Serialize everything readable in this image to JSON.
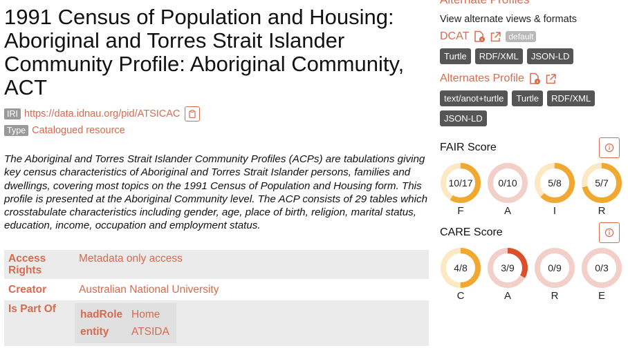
{
  "header": {
    "title": "1991 Census of Population and Housing: Aboriginal and Torres Strait Islander Community Profile: Aboriginal Community, ACT",
    "iri_label": "IRI",
    "iri": "https://data.idnau.org/pid/ATSICAC",
    "type_label": "Type",
    "type_value": "Catalogued resource"
  },
  "description": "The Aboriginal and Torres Strait Islander Community Profiles (ACPs) are tabulations giving key census characteristics of Aboriginal and Torres Strait Islander persons, families and dwellings, covering most topics on the 1991 Census of Population and Housing form. This profile is presented at the Aboriginal Community level. The ACP consists of 29 tables which crosstabulate characteristics including gender, age, place of birth, religion, marital status, education, income, occupation and employment status.",
  "properties": {
    "access_key": "Access Rights",
    "access_value": "Metadata only access",
    "creator_key": "Creator",
    "creator_value": "Australian National University",
    "partof_key": "Is Part Of",
    "partof_nested": [
      {
        "k": "hadRole",
        "v": "Home"
      },
      {
        "k": "entity",
        "v": "ATSIDA"
      }
    ]
  },
  "alternates": {
    "title": "Alternate Profiles",
    "subtitle": "View alternate views & formats",
    "dcat_label": "DCAT",
    "dcat_default": "default",
    "dcat_formats": [
      "Turtle",
      "RDF/XML",
      "JSON-LD"
    ],
    "alt_label": "Alternates Profile",
    "alt_formats": [
      "text/anot+turtle",
      "Turtle",
      "RDF/XML",
      "JSON-LD"
    ]
  },
  "fair": {
    "title": "FAIR Score",
    "scores": [
      {
        "text": "10/17",
        "value": 10,
        "max": 17,
        "letter": "F"
      },
      {
        "text": "0/10",
        "value": 0,
        "max": 10,
        "letter": "A"
      },
      {
        "text": "5/8",
        "value": 5,
        "max": 8,
        "letter": "I"
      },
      {
        "text": "5/7",
        "value": 5,
        "max": 7,
        "letter": "R"
      }
    ]
  },
  "care": {
    "title": "CARE Score",
    "scores": [
      {
        "text": "4/8",
        "value": 4,
        "max": 8,
        "letter": "C"
      },
      {
        "text": "3/9",
        "value": 3,
        "max": 9,
        "letter": "A"
      },
      {
        "text": "0/9",
        "value": 0,
        "max": 9,
        "letter": "R"
      },
      {
        "text": "0/3",
        "value": 0,
        "max": 3,
        "letter": "E"
      }
    ]
  },
  "colors": {
    "accent": "#d66b4f",
    "fair_fill": "#f0a830",
    "fair_track": "#fbe9c4",
    "care_fill_good": "#f0a830",
    "care_fill_low": "#d9502a",
    "zero_track": "#f2cfc8"
  },
  "icons": {
    "copy": "clipboard-icon",
    "file_info": "file-info-icon",
    "external": "external-link-icon",
    "info": "info-circle-icon"
  }
}
